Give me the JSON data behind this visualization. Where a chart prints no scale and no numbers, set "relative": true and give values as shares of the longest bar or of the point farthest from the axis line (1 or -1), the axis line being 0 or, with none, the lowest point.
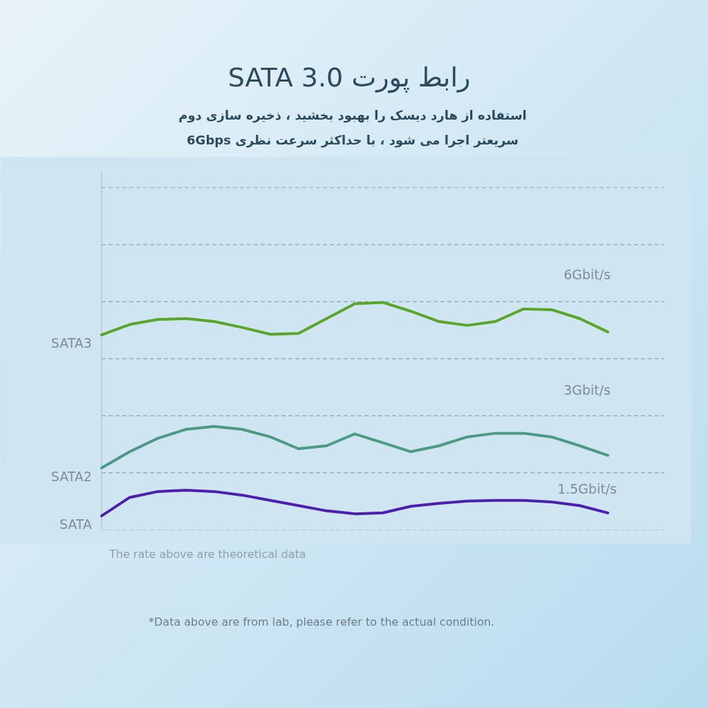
{
  "chart_data": {
    "type": "line",
    "title": "رابط پورت SATA 3.0",
    "subtitle": "استفاده از هارد دیسک را بهبود بخشید ، ذخیره سازی دوم سریعتر اجرا می شود ، با حداکثر سرعت نظری 6Gbps",
    "relative": true,
    "grid": "y",
    "marker": "none",
    "line_style": "solid",
    "categories": [
      null,
      null,
      null,
      null,
      null,
      null,
      null,
      null,
      null,
      null,
      null,
      null,
      null,
      null,
      null,
      null,
      null,
      null,
      null
    ],
    "series": [
      {
        "name": "SATA3",
        "color": "#5aa52a",
        "values": [
          0.857,
          0.903,
          0.925,
          0.929,
          0.916,
          0.89,
          0.86,
          0.864,
          0.929,
          0.994,
          1,
          0.961,
          0.916,
          0.899,
          0.916,
          0.971,
          0.968,
          0.929,
          0.87
        ]
      },
      {
        "name": "SATA2",
        "color": "#4a9a84",
        "values": [
          0.273,
          0.344,
          0.403,
          0.442,
          0.455,
          0.442,
          0.409,
          0.357,
          0.37,
          0.422,
          0.383,
          0.344,
          0.37,
          0.409,
          0.425,
          0.425,
          0.409,
          0.37,
          0.328
        ]
      },
      {
        "name": "SATA",
        "color": "#4b1fb0",
        "values": [
          0.062,
          0.143,
          0.169,
          0.175,
          0.169,
          0.153,
          0.13,
          0.107,
          0.084,
          0.071,
          0.075,
          0.104,
          0.117,
          0.127,
          0.13,
          0.13,
          0.123,
          0.107,
          0.075
        ]
      }
    ],
    "annotations": [
      "6Gbit/s",
      "3Gbit/s",
      "1.5Gbit/s",
      "The rate above are theoretical data",
      "*Data above are from lab, please refer to the actual condition."
    ]
  }
}
